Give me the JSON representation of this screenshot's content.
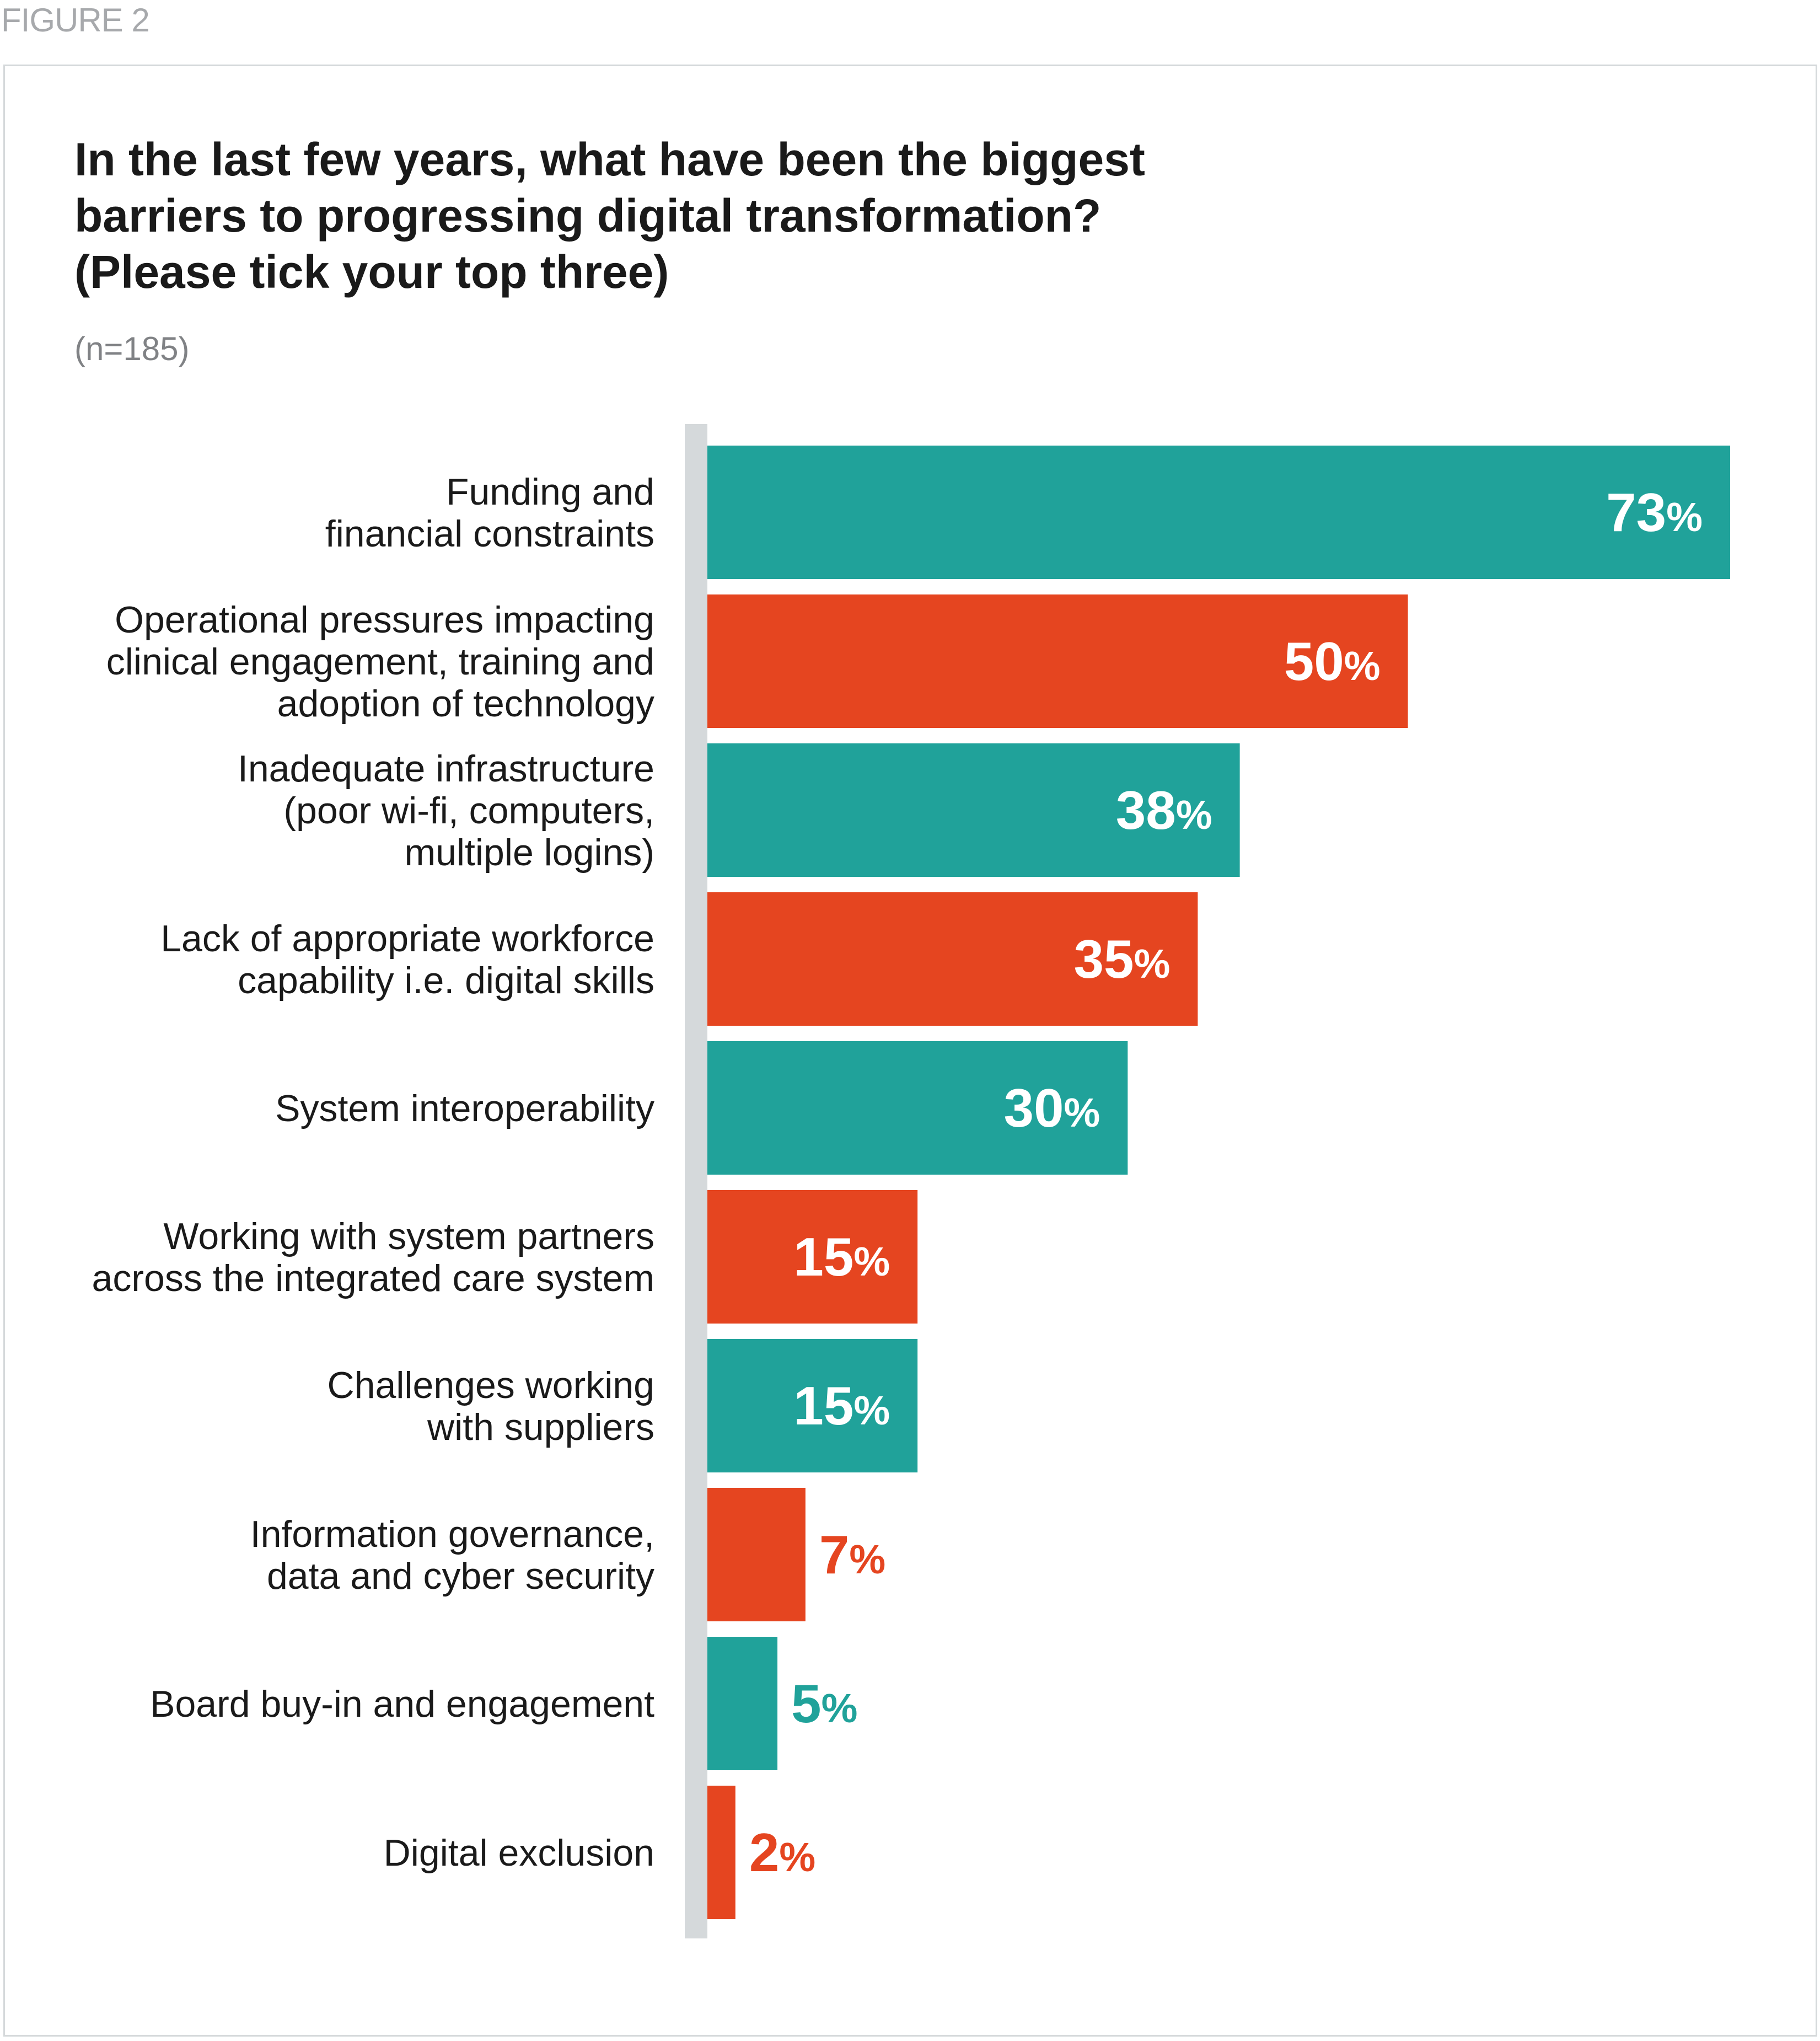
{
  "figure_label": "FIGURE 2",
  "chart_data": {
    "type": "bar",
    "orientation": "horizontal",
    "title_lines": [
      "In the last few years, what have been the biggest",
      "barriers to progressing digital transformation?",
      "(Please tick your top three)"
    ],
    "subtitle": "(n=185)",
    "categories": [
      [
        "Funding and",
        "financial constraints"
      ],
      [
        "Operational pressures impacting",
        "clinical engagement, training and",
        "adoption of technology"
      ],
      [
        "Inadequate infrastructure",
        "(poor wi-fi, computers,",
        "multiple logins)"
      ],
      [
        "Lack of appropriate workforce",
        "capability i.e. digital skills"
      ],
      [
        "System interoperability"
      ],
      [
        "Working with system partners",
        "across the integrated care system"
      ],
      [
        "Challenges working",
        "with suppliers"
      ],
      [
        "Information governance,",
        "data and cyber security"
      ],
      [
        "Board buy-in and engagement"
      ],
      [
        "Digital exclusion"
      ]
    ],
    "values": [
      73,
      50,
      38,
      35,
      30,
      15,
      15,
      7,
      5,
      2
    ],
    "value_unit": "%",
    "xlim": [
      0,
      73
    ],
    "bar_colors": [
      "#20a29a",
      "#e54520",
      "#20a29a",
      "#e54520",
      "#20a29a",
      "#e54520",
      "#20a29a",
      "#e54520",
      "#20a29a",
      "#e54520"
    ],
    "label_inside_color": "#ffffff",
    "grid": false,
    "legend": "none"
  }
}
